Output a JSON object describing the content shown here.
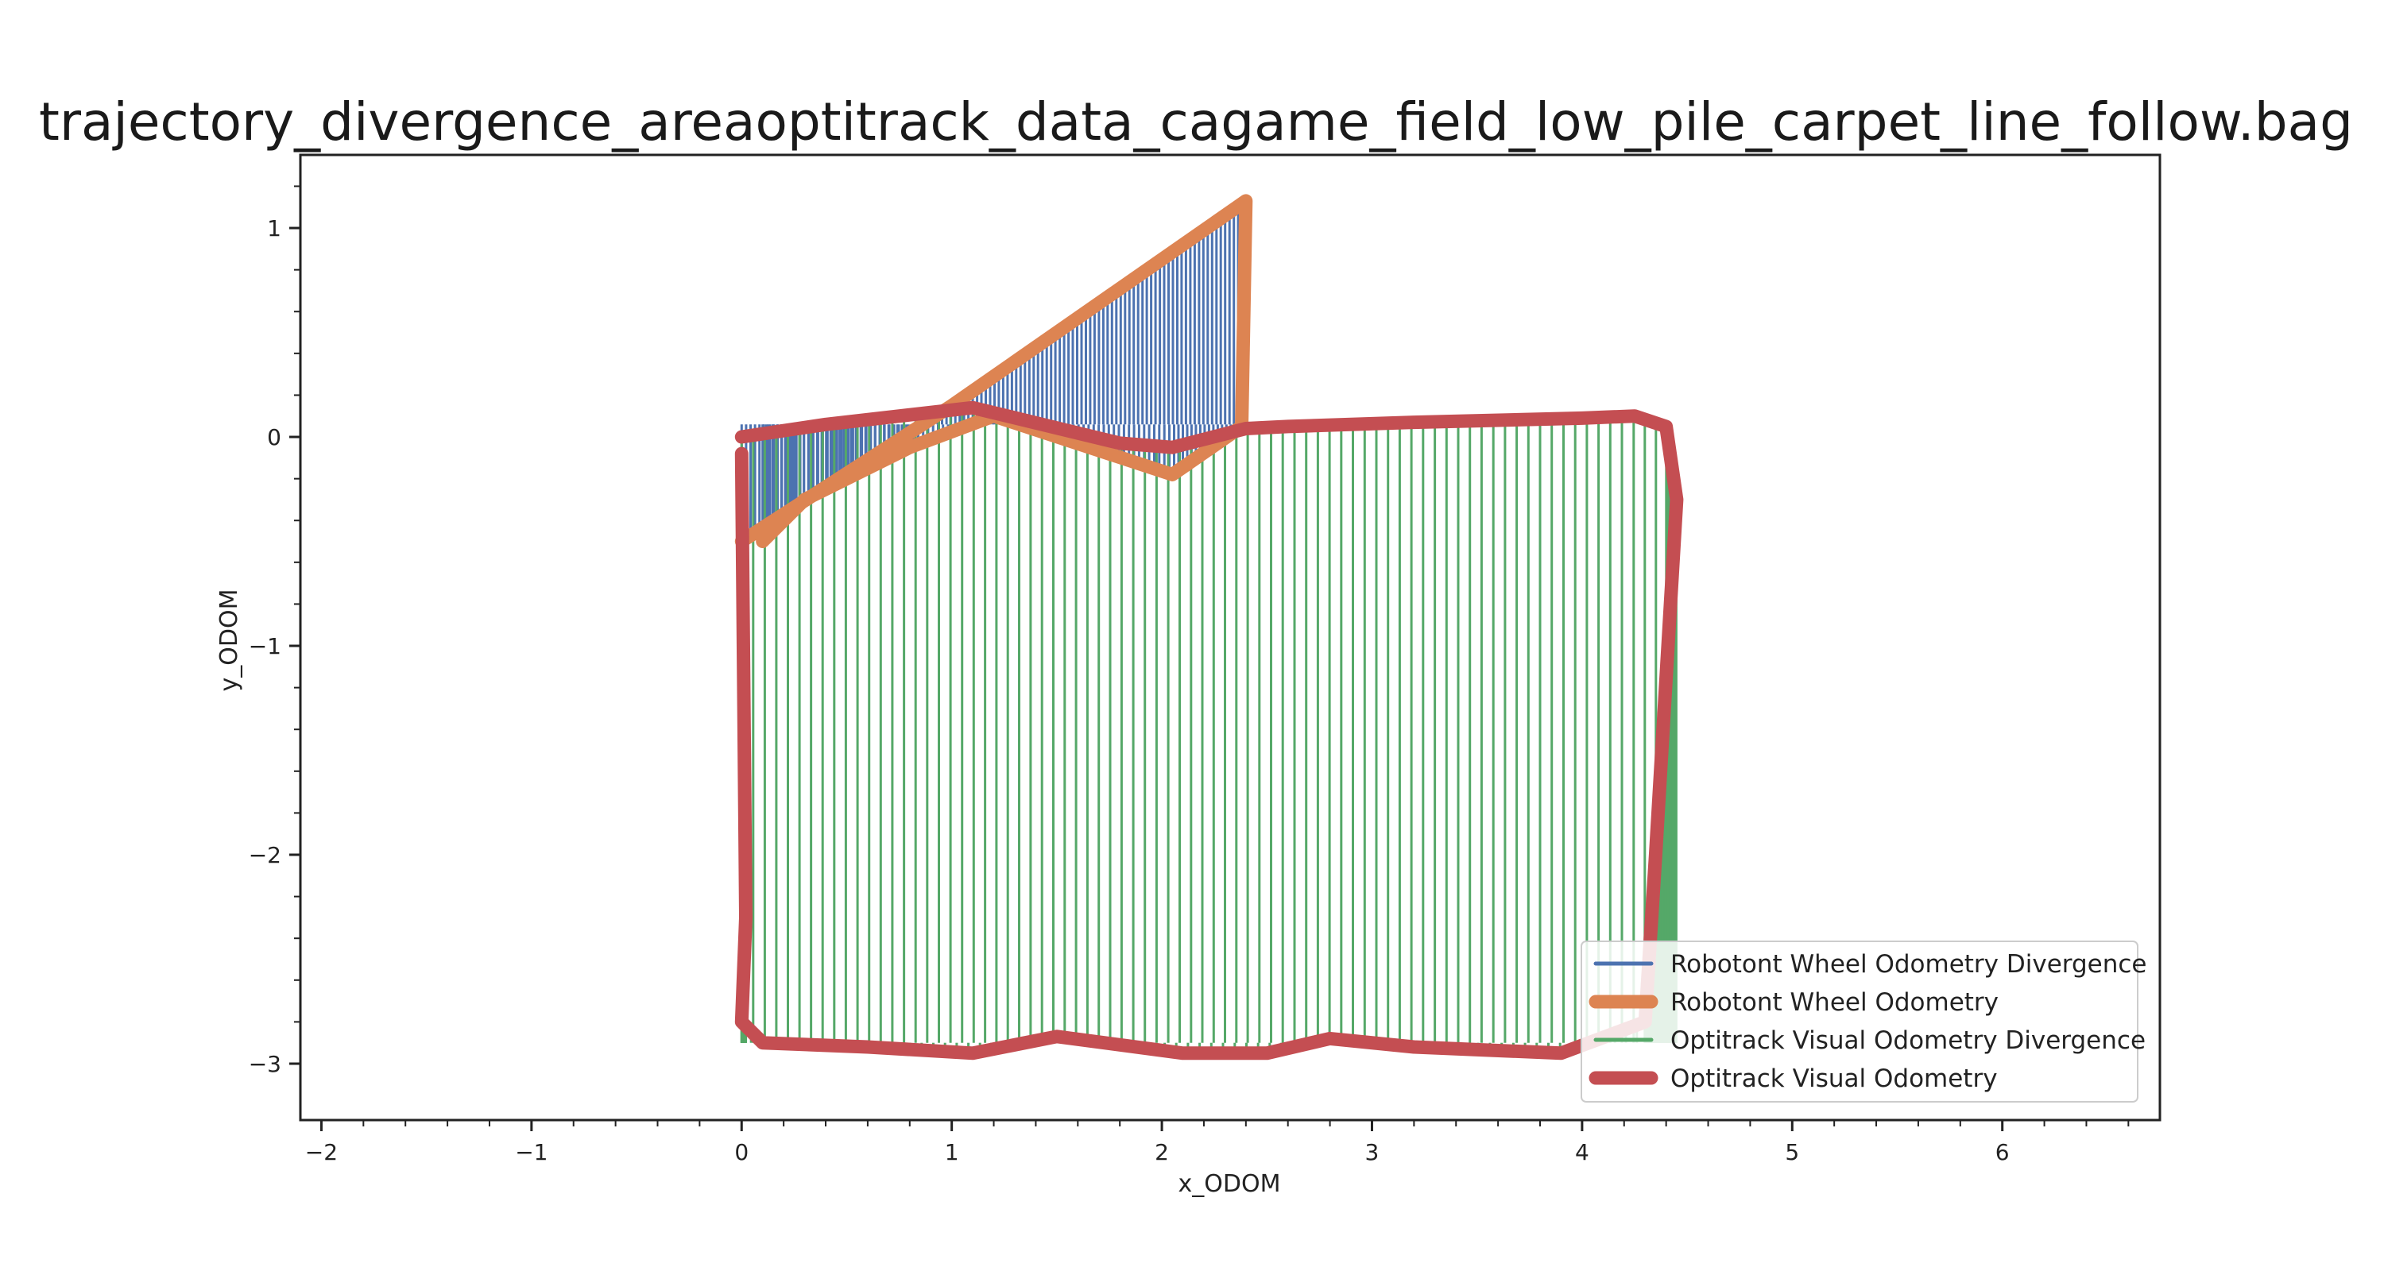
{
  "chart_data": {
    "type": "line",
    "title": "trajectory_divergence_areaoptitrack_data_cagame_field_low_pile_carpet_line_follow.bag",
    "xlabel": "x_ODOM",
    "ylabel": "y_ODOM",
    "xlim": [
      -2.1,
      6.75
    ],
    "ylim": [
      -3.27,
      1.35
    ],
    "xticks": [
      -2,
      -1,
      0,
      1,
      2,
      3,
      4,
      5,
      6
    ],
    "yticks": [
      1,
      0,
      -1,
      -2,
      -3
    ],
    "xtick_labels": [
      "−2",
      "−1",
      "0",
      "1",
      "2",
      "3",
      "4",
      "5",
      "6"
    ],
    "ytick_labels": [
      "1",
      "0",
      "−1",
      "−2",
      "−3"
    ],
    "grid": false,
    "legend_position": "lower-right",
    "series": [
      {
        "name": "Robotont Wheel Odometry Divergence",
        "color": "#4c72b0",
        "kind": "divergence",
        "paired_with": "Robotont Wheel Odometry"
      },
      {
        "name": "Robotont Wheel Odometry",
        "color": "#dd8452",
        "kind": "path",
        "x": [
          0.0,
          1.0,
          2.4,
          2.38,
          2.05,
          1.2,
          0.8,
          0.3,
          0.1
        ],
        "y": [
          -0.5,
          0.15,
          1.13,
          0.05,
          -0.18,
          0.1,
          -0.05,
          -0.3,
          -0.5
        ]
      },
      {
        "name": "Optitrack Visual Odometry Divergence",
        "color": "#55a868",
        "kind": "divergence",
        "paired_with": "Optitrack Visual Odometry"
      },
      {
        "name": "Optitrack Visual Odometry",
        "color": "#c44e52",
        "kind": "path",
        "x": [
          0.0,
          0.4,
          1.1,
          1.8,
          2.05,
          2.4,
          2.6,
          3.2,
          4.0,
          4.25,
          4.4,
          4.45,
          4.35,
          4.3,
          3.9,
          3.2,
          2.8,
          2.5,
          2.1,
          1.5,
          1.1,
          0.6,
          0.1,
          0.0,
          0.02,
          0.0
        ],
        "y": [
          0.0,
          0.06,
          0.14,
          -0.03,
          -0.05,
          0.04,
          0.05,
          0.07,
          0.09,
          0.1,
          0.05,
          -0.3,
          -2.0,
          -2.8,
          -2.95,
          -2.92,
          -2.88,
          -2.95,
          -2.95,
          -2.87,
          -2.95,
          -2.92,
          -2.9,
          -2.8,
          -2.3,
          -0.08
        ]
      }
    ]
  }
}
